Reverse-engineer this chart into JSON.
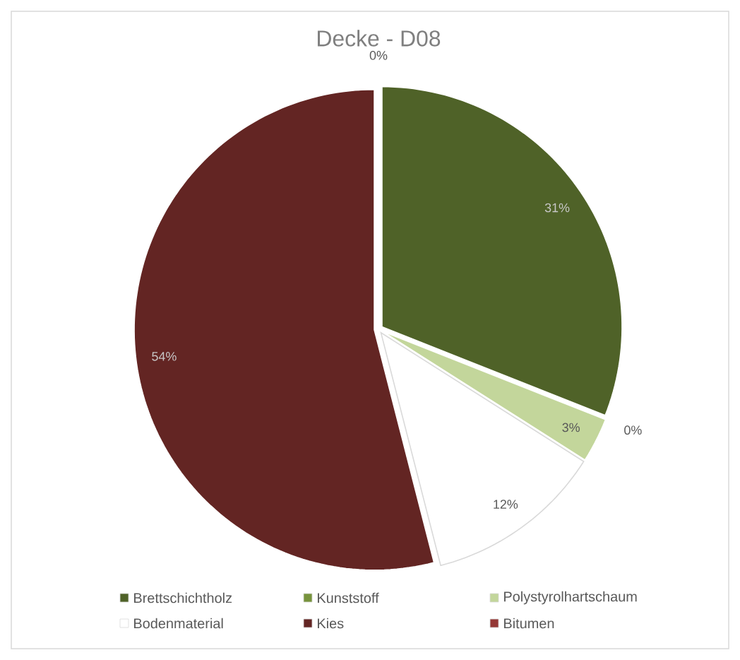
{
  "chart_data": {
    "type": "pie",
    "title": "Decke - D08",
    "categories": [
      "Brettschichtholz",
      "Kunststoff",
      "Polystyrolhartschaum",
      "Bodenmaterial",
      "Kies",
      "Bitumen"
    ],
    "values": [
      31,
      0,
      3,
      12,
      54,
      0
    ],
    "colors": [
      "#4f6228",
      "#77933c",
      "#c3d69b",
      "#ffffff",
      "#632523",
      "#953735"
    ],
    "value_labels": [
      "31%",
      "0%",
      "3%",
      "12%",
      "54%",
      "0%"
    ],
    "legend": "bottom"
  }
}
